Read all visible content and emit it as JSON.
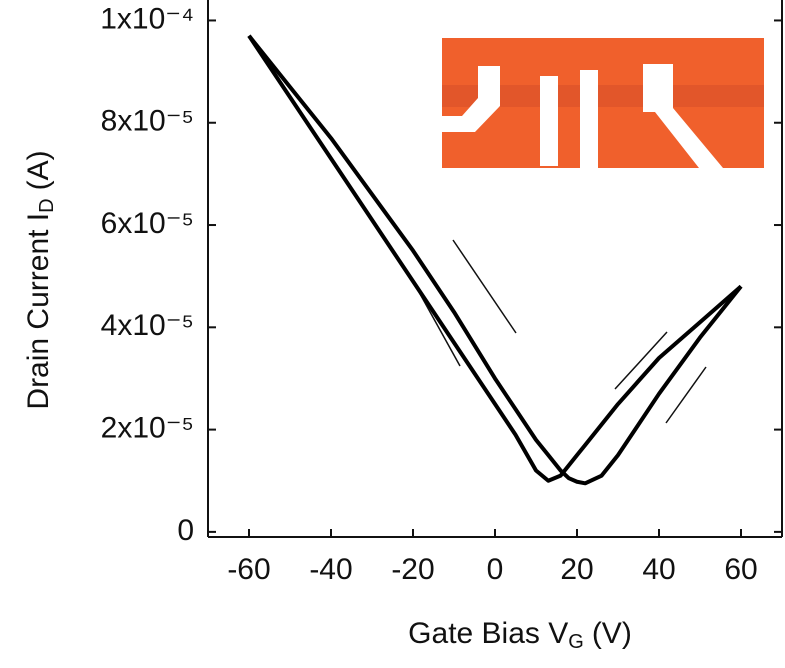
{
  "chart_data": {
    "type": "line",
    "x_label": "Gate Bias V",
    "x_label_sub": "G",
    "x_label_unit": "(V)",
    "y_label": "Drain Current I",
    "y_label_sub": "D",
    "y_label_unit": "(A)",
    "x": [
      -60,
      -50,
      -40,
      -30,
      -20,
      -10,
      0,
      5,
      10,
      13,
      16,
      18,
      20,
      22,
      26,
      30,
      40,
      50,
      60
    ],
    "series": [
      {
        "color": "#000000",
        "values": [
          9.7e-05,
          8.5e-05,
          7.3e-05,
          6.1e-05,
          4.9e-05,
          3.7e-05,
          2.5e-05,
          1.9e-05,
          1.2e-05,
          1e-05,
          1.1e-05,
          1.3e-05,
          1.5e-05,
          1.7e-05,
          2.1e-05,
          2.5e-05,
          3.4e-05,
          4.1e-05,
          4.8e-05
        ]
      },
      {
        "color": "#000000",
        "values": [
          9.7e-05,
          8.7e-05,
          7.7e-05,
          6.6e-05,
          5.5e-05,
          4.3e-05,
          3e-05,
          2.4e-05,
          1.8e-05,
          1.5e-05,
          1.2e-05,
          1.05e-05,
          9.8e-06,
          9.5e-06,
          1.1e-05,
          1.5e-05,
          2.7e-05,
          3.8e-05,
          4.8e-05
        ]
      }
    ],
    "xlim": [
      -70,
      70
    ],
    "xticks": [
      -60,
      -40,
      -20,
      0,
      20,
      40,
      60
    ],
    "ylim": [
      -1e-06,
      0.000104
    ],
    "yticks": [
      {
        "value": 0,
        "label": "0"
      },
      {
        "value": 2e-05,
        "label": "2x10⁻⁵"
      },
      {
        "value": 4e-05,
        "label": "4x10⁻⁵"
      },
      {
        "value": 6e-05,
        "label": "6x10⁻⁵"
      },
      {
        "value": 8e-05,
        "label": "8x10⁻⁵"
      },
      {
        "value": 0.0001,
        "label": "1x10⁻⁴"
      }
    ]
  }
}
